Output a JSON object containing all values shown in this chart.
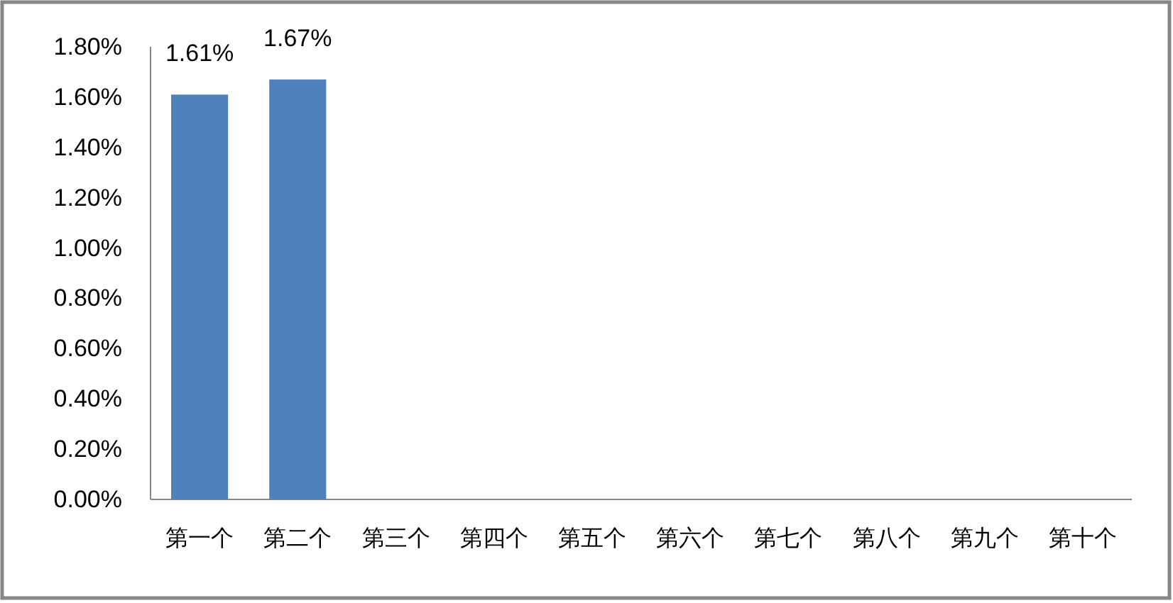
{
  "chart_data": {
    "type": "bar",
    "categories": [
      "第一个",
      "第二个",
      "第三个",
      "第四个",
      "第五个",
      "第六个",
      "第七个",
      "第八个",
      "第九个",
      "第十个"
    ],
    "values": [
      1.61,
      1.67,
      null,
      null,
      null,
      null,
      null,
      null,
      null,
      null
    ],
    "value_labels": [
      "1.61%",
      "1.67%",
      null,
      null,
      null,
      null,
      null,
      null,
      null,
      null
    ],
    "color": "#4f81bd",
    "ylim": [
      0,
      1.8
    ],
    "yticks": [
      {
        "value": 0,
        "label": "0.00%"
      },
      {
        "value": 0.2,
        "label": "0.20%"
      },
      {
        "value": 0.4,
        "label": "0.40%"
      },
      {
        "value": 0.6,
        "label": "0.60%"
      },
      {
        "value": 0.8,
        "label": "0.80%"
      },
      {
        "value": 1.0,
        "label": "1.00%"
      },
      {
        "value": 1.2,
        "label": "1.20%"
      },
      {
        "value": 1.4,
        "label": "1.40%"
      },
      {
        "value": 1.6,
        "label": "1.60%"
      },
      {
        "value": 1.8,
        "label": "1.80%"
      }
    ]
  }
}
